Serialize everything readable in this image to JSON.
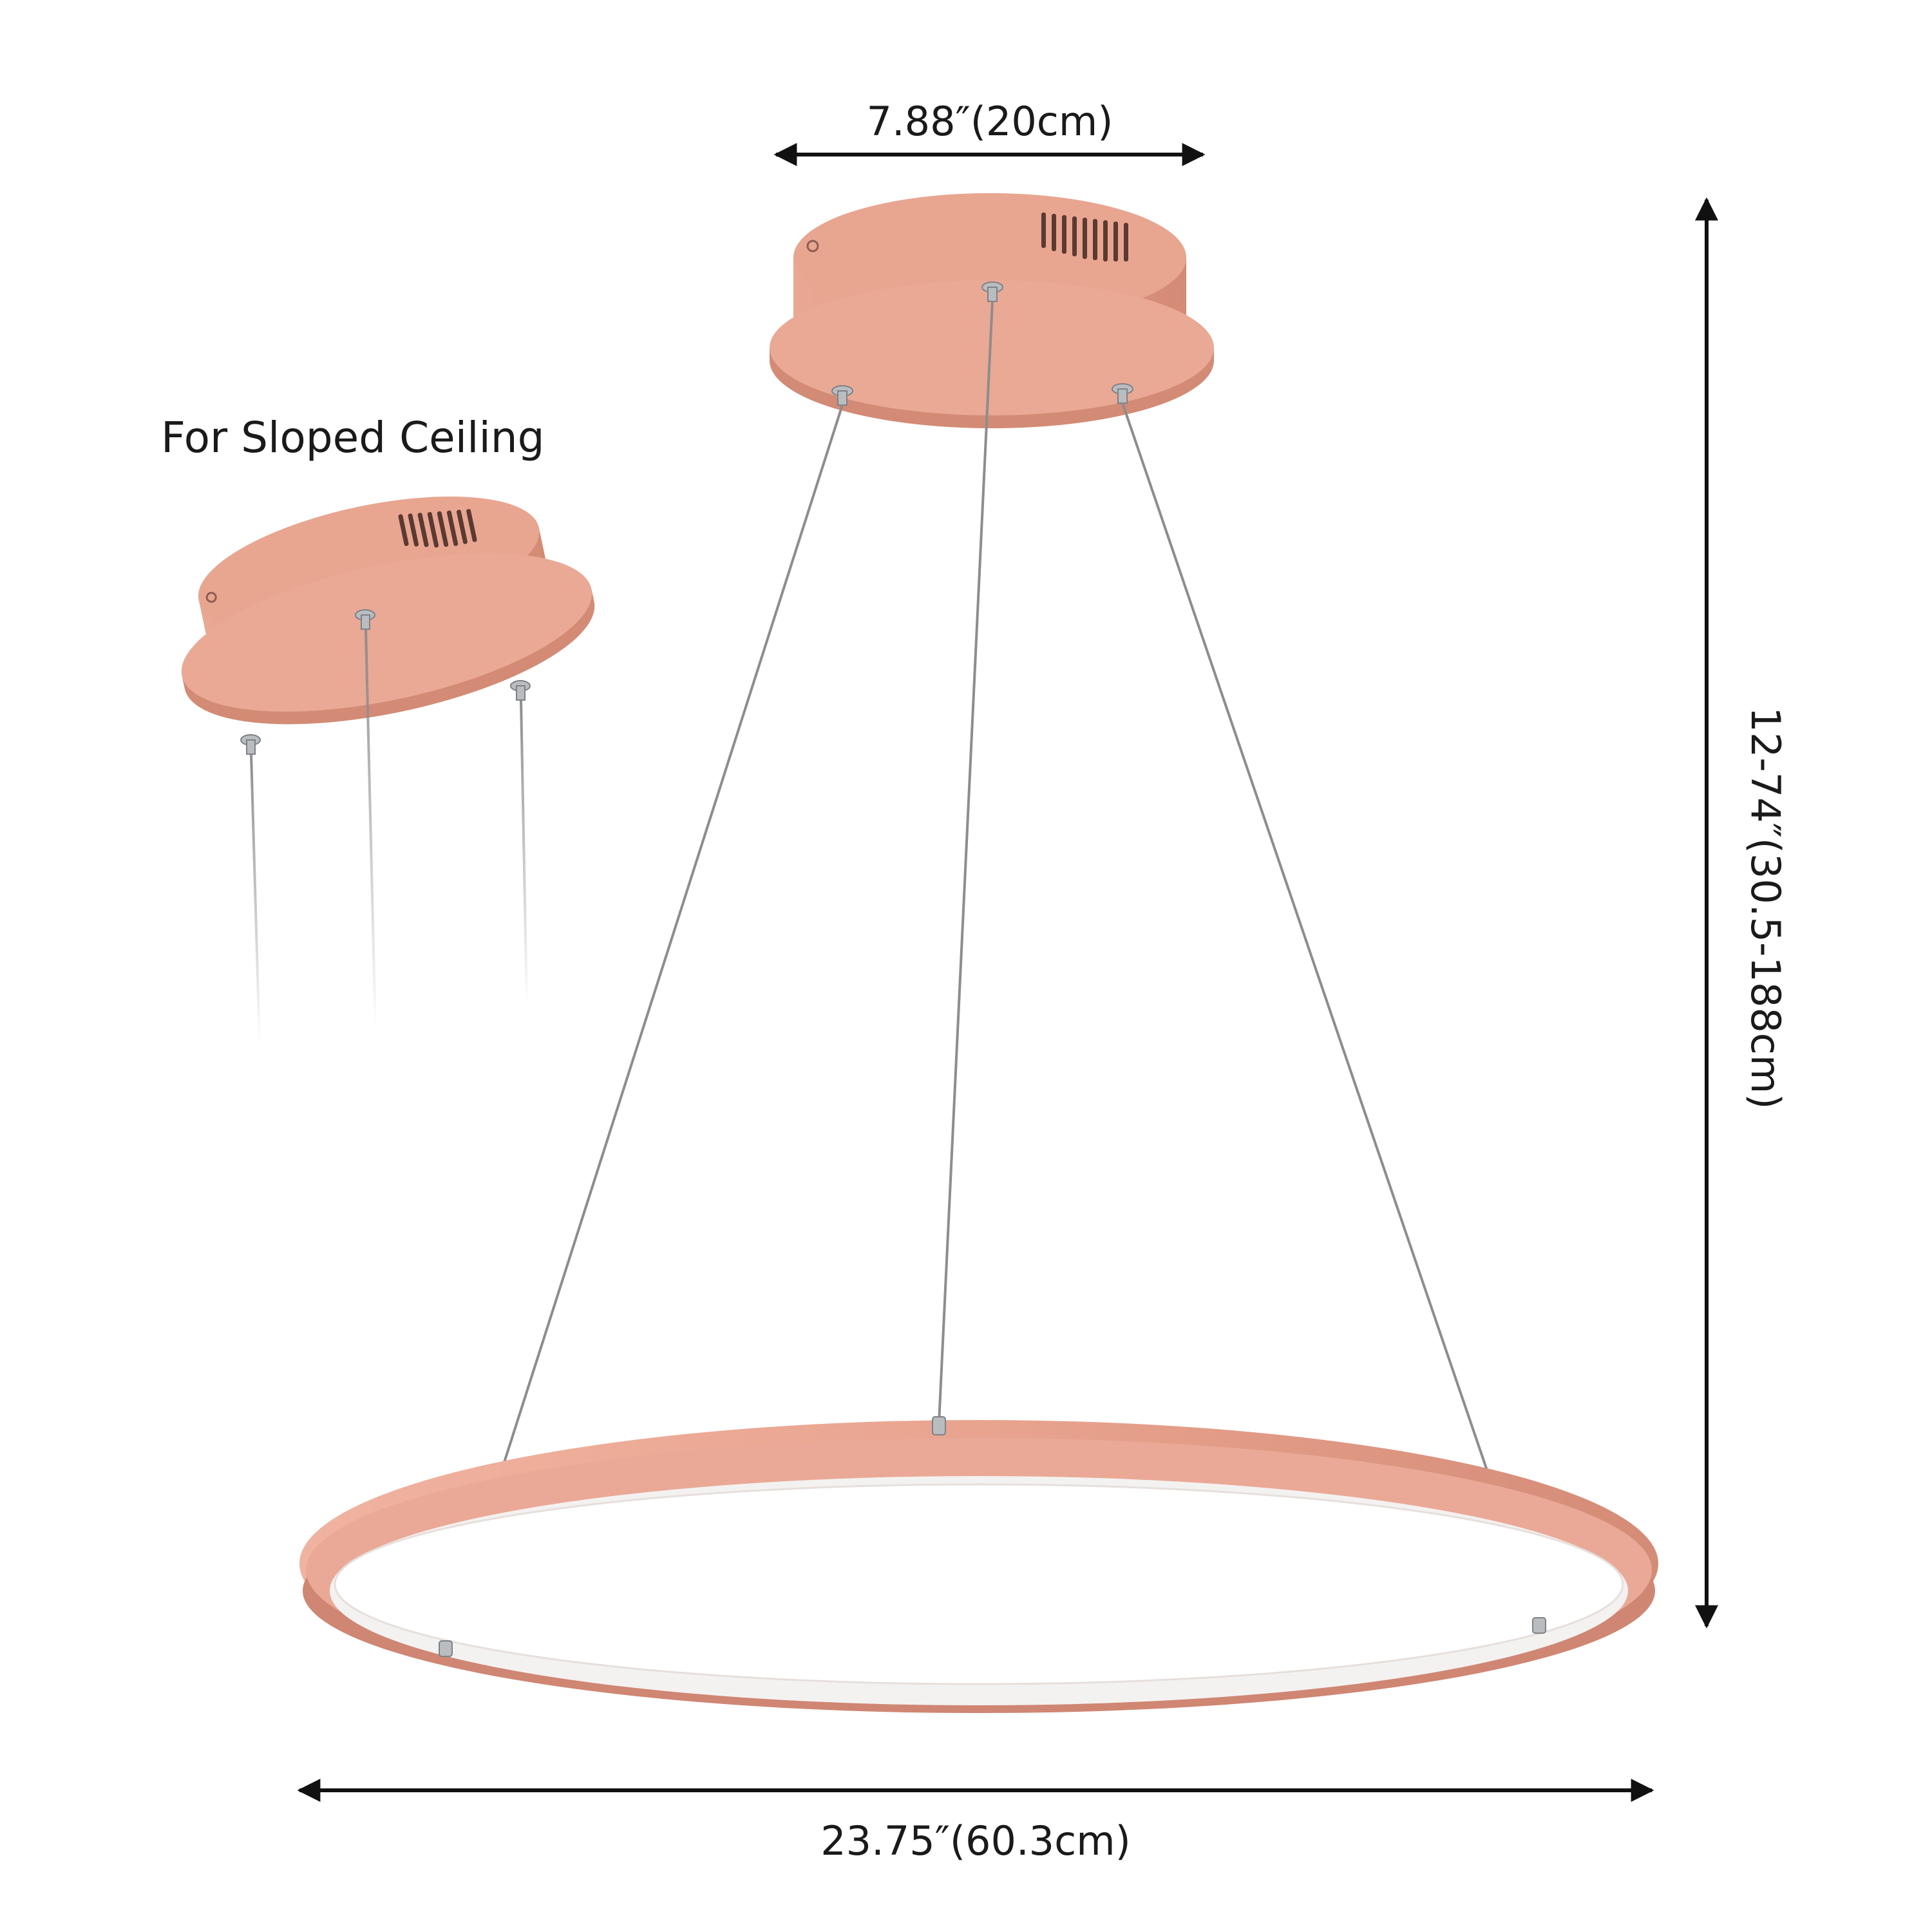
{
  "labels": {
    "canopy_width": "7.88″(20cm)",
    "height_range": "12-74″(30.5-188cm)",
    "ring_diameter": "23.75″(60.3cm)",
    "sloped_ceiling": "For Sloped Ceiling"
  },
  "colors": {
    "finish": "#e8a08c",
    "finish_shadow": "#c98472",
    "finish_top": "#efb39f",
    "led_diffuser": "#f3f1f0",
    "cable": "#8d8d8d",
    "hardware": "#b9bdc0",
    "text": "#1a1a1a",
    "arrow": "#111111"
  }
}
